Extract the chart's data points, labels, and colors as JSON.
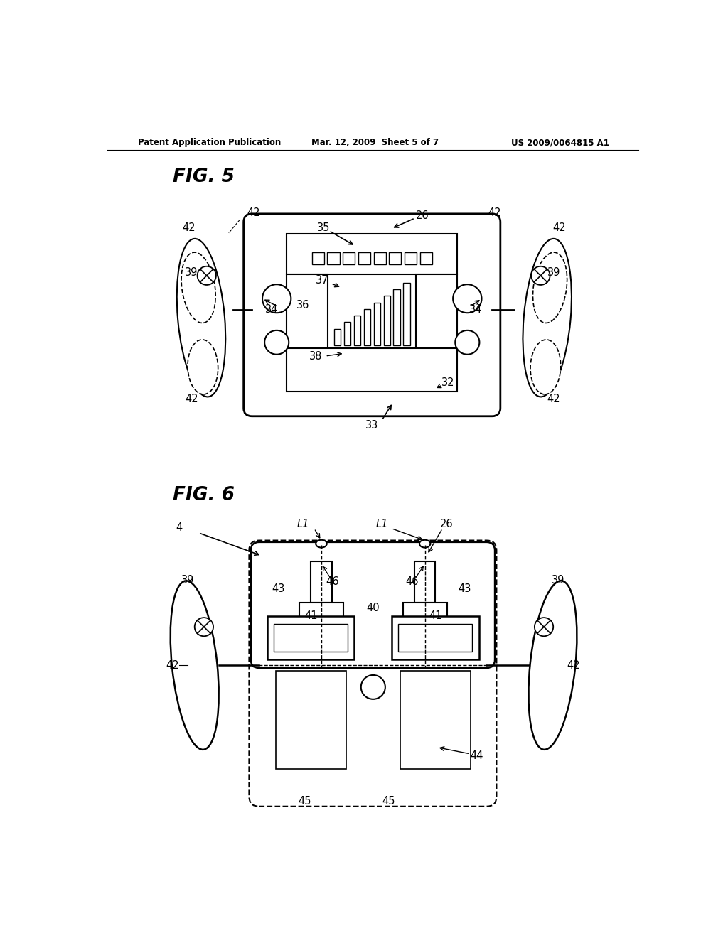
{
  "bg_color": "#ffffff",
  "line_color": "#000000",
  "header_left": "Patent Application Publication",
  "header_center": "Mar. 12, 2009  Sheet 5 of 7",
  "header_right": "US 2009/0064815 A1",
  "fig5_label": "FIG. 5",
  "fig6_label": "FIG. 6"
}
